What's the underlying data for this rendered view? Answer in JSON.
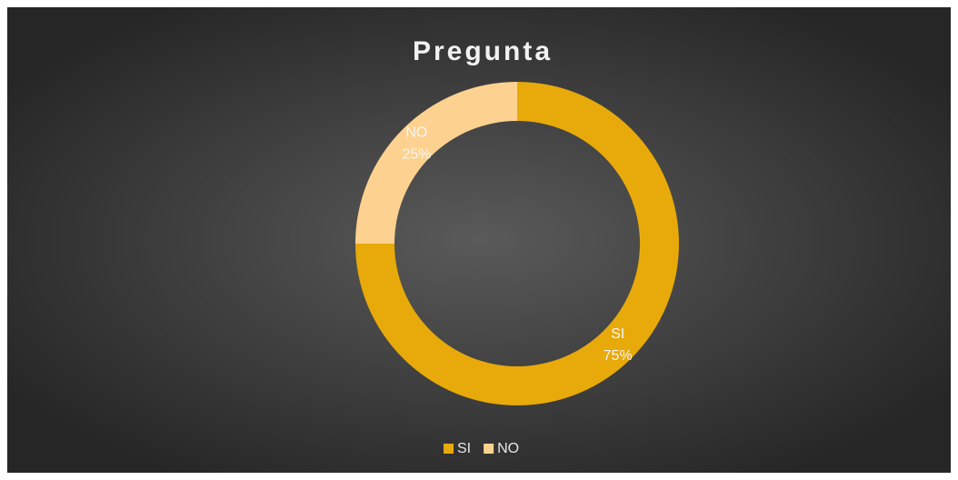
{
  "chart_data": {
    "type": "donut",
    "title": "Pregunta",
    "categories": [
      "SI",
      "NO"
    ],
    "values": [
      75,
      25
    ],
    "value_labels": [
      "75%",
      "25%"
    ],
    "colors": [
      "#e8aa0a",
      "#fdd290"
    ],
    "legend": "bottom"
  }
}
